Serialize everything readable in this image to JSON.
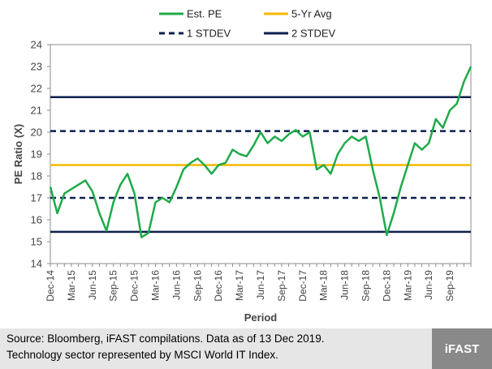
{
  "chart_data": {
    "type": "line",
    "xlabel": "Period",
    "ylabel": "PE Ratio (X)",
    "ylim": [
      14,
      24
    ],
    "yticks": [
      14,
      15,
      16,
      17,
      18,
      19,
      20,
      21,
      22,
      23,
      24
    ],
    "xrange": [
      "2014-12",
      "2019-12"
    ],
    "xticks": [
      "Dec-14",
      "Mar-15",
      "Jun-15",
      "Sep-15",
      "Dec-15",
      "Mar-16",
      "Jun-16",
      "Sep-16",
      "Dec-16",
      "Mar-17",
      "Jun-17",
      "Sep-17",
      "Dec-17",
      "Mar-18",
      "Jun-18",
      "Sep-18",
      "Dec-18",
      "Mar-19",
      "Jun-19",
      "Sep-19"
    ],
    "grid": false,
    "legend_position": "top",
    "series": [
      {
        "name": "Est. PE",
        "color": "#1faa4a",
        "style": "solid",
        "points": [
          [
            "2014-12",
            17.5
          ],
          [
            "2015-01",
            16.3
          ],
          [
            "2015-02",
            17.2
          ],
          [
            "2015-03",
            17.4
          ],
          [
            "2015-04",
            17.6
          ],
          [
            "2015-05",
            17.8
          ],
          [
            "2015-06",
            17.3
          ],
          [
            "2015-07",
            16.3
          ],
          [
            "2015-08",
            15.5
          ],
          [
            "2015-09",
            16.8
          ],
          [
            "2015-10",
            17.6
          ],
          [
            "2015-11",
            18.1
          ],
          [
            "2015-12",
            17.2
          ],
          [
            "2016-01",
            15.2
          ],
          [
            "2016-02",
            15.4
          ],
          [
            "2016-03",
            16.8
          ],
          [
            "2016-04",
            17.0
          ],
          [
            "2016-05",
            16.8
          ],
          [
            "2016-06",
            17.5
          ],
          [
            "2016-07",
            18.3
          ],
          [
            "2016-08",
            18.6
          ],
          [
            "2016-09",
            18.8
          ],
          [
            "2016-10",
            18.5
          ],
          [
            "2016-11",
            18.1
          ],
          [
            "2016-12",
            18.5
          ],
          [
            "2017-01",
            18.6
          ],
          [
            "2017-02",
            19.2
          ],
          [
            "2017-03",
            19.0
          ],
          [
            "2017-04",
            18.9
          ],
          [
            "2017-05",
            19.4
          ],
          [
            "2017-06",
            20.0
          ],
          [
            "2017-07",
            19.5
          ],
          [
            "2017-08",
            19.8
          ],
          [
            "2017-09",
            19.6
          ],
          [
            "2017-10",
            19.9
          ],
          [
            "2017-11",
            20.1
          ],
          [
            "2017-12",
            19.8
          ],
          [
            "2018-01",
            20.0
          ],
          [
            "2018-02",
            18.3
          ],
          [
            "2018-03",
            18.5
          ],
          [
            "2018-04",
            18.1
          ],
          [
            "2018-05",
            19.0
          ],
          [
            "2018-06",
            19.5
          ],
          [
            "2018-07",
            19.8
          ],
          [
            "2018-08",
            19.6
          ],
          [
            "2018-09",
            19.8
          ],
          [
            "2018-10",
            18.3
          ],
          [
            "2018-11",
            17.0
          ],
          [
            "2018-12",
            15.3
          ],
          [
            "2019-01",
            16.3
          ],
          [
            "2019-02",
            17.5
          ],
          [
            "2019-03",
            18.5
          ],
          [
            "2019-04",
            19.5
          ],
          [
            "2019-05",
            19.2
          ],
          [
            "2019-06",
            19.5
          ],
          [
            "2019-07",
            20.6
          ],
          [
            "2019-08",
            20.2
          ],
          [
            "2019-09",
            21.0
          ],
          [
            "2019-10",
            21.3
          ],
          [
            "2019-11",
            22.3
          ],
          [
            "2019-12",
            23.0
          ]
        ]
      },
      {
        "name": "5-Yr Avg",
        "color": "#f5b800",
        "style": "solid",
        "value": 18.5
      },
      {
        "name": "1 STDEV",
        "color": "#0d1f4d",
        "style": "dashed",
        "values": [
          17.0,
          20.05
        ]
      },
      {
        "name": "2 STDEV",
        "color": "#0d1f4d",
        "style": "solid",
        "values": [
          15.45,
          21.6
        ]
      }
    ]
  },
  "footer": {
    "source_line1": "Source: Bloomberg, iFAST compilations. Data as of 13 Dec 2019.",
    "source_line2": "Technology sector represented by MSCI World IT Index.",
    "logo_text": "iFAST"
  }
}
